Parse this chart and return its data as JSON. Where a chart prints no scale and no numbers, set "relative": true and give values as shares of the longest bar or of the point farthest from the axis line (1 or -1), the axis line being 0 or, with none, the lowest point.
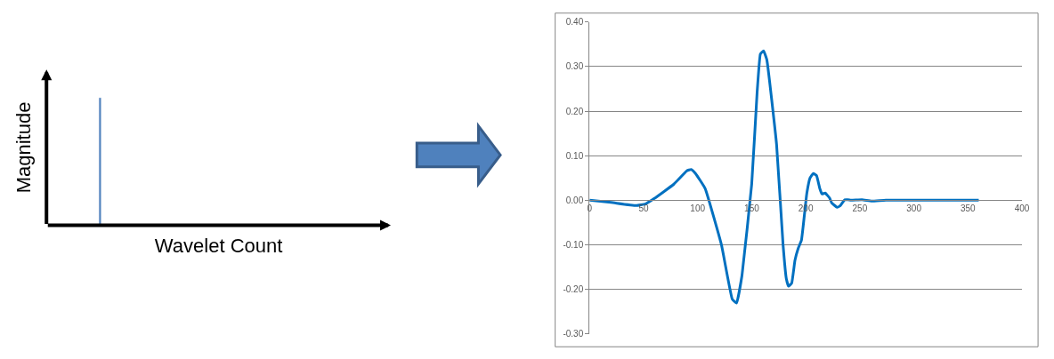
{
  "chart_data": [
    {
      "type": "bar",
      "xlabel": "Wavelet Count",
      "ylabel": "Magnitude",
      "relative": true,
      "categories": [
        null
      ],
      "values": [
        1
      ],
      "color": "#4f81bd"
    },
    {
      "type": "line",
      "xlim": [
        0,
        400
      ],
      "xticks": [
        0,
        50,
        100,
        150,
        200,
        250,
        300,
        350,
        400
      ],
      "ylim": [
        -0.3,
        0.4
      ],
      "yticks": [
        {
          "value": -0.3,
          "label": "-0.30"
        },
        {
          "value": -0.2,
          "label": "-0.20"
        },
        {
          "value": -0.1,
          "label": "-0.10"
        },
        {
          "value": 0,
          "label": "0.00"
        },
        {
          "value": 0.1,
          "label": "0.10"
        },
        {
          "value": 0.2,
          "label": "0.20"
        },
        {
          "value": 0.3,
          "label": "0.30"
        },
        {
          "value": 0.4,
          "label": "0.40"
        }
      ],
      "grid": "y",
      "marker": "none",
      "line_style": "solid",
      "series": [
        {
          "color": "#0070c0",
          "x": [
            0,
            20,
            43,
            52,
            60,
            78,
            90,
            94,
            98,
            107,
            122,
            132,
            136,
            141,
            150,
            155,
            158,
            161,
            164,
            173,
            179,
            182,
            184,
            187,
            190,
            193,
            196,
            201,
            204,
            207,
            210,
            213,
            215,
            218,
            222,
            224,
            229,
            232,
            236,
            239,
            242,
            252,
            261,
            274,
            360
          ],
          "values": [
            0,
            -0.005,
            -0.012,
            -0.008,
            0.004,
            0.036,
            0.066,
            0.069,
            0.06,
            0.026,
            -0.1,
            -0.222,
            -0.231,
            -0.169,
            0.036,
            0.242,
            0.328,
            0.335,
            0.315,
            0.125,
            -0.1,
            -0.176,
            -0.193,
            -0.186,
            -0.135,
            -0.108,
            -0.09,
            0.016,
            0.05,
            0.06,
            0.055,
            0.026,
            0.014,
            0.016,
            0.005,
            -0.006,
            -0.016,
            -0.012,
            0.001,
            0.001,
            0,
            0.001,
            -0.002,
            0,
            0
          ]
        }
      ]
    }
  ]
}
